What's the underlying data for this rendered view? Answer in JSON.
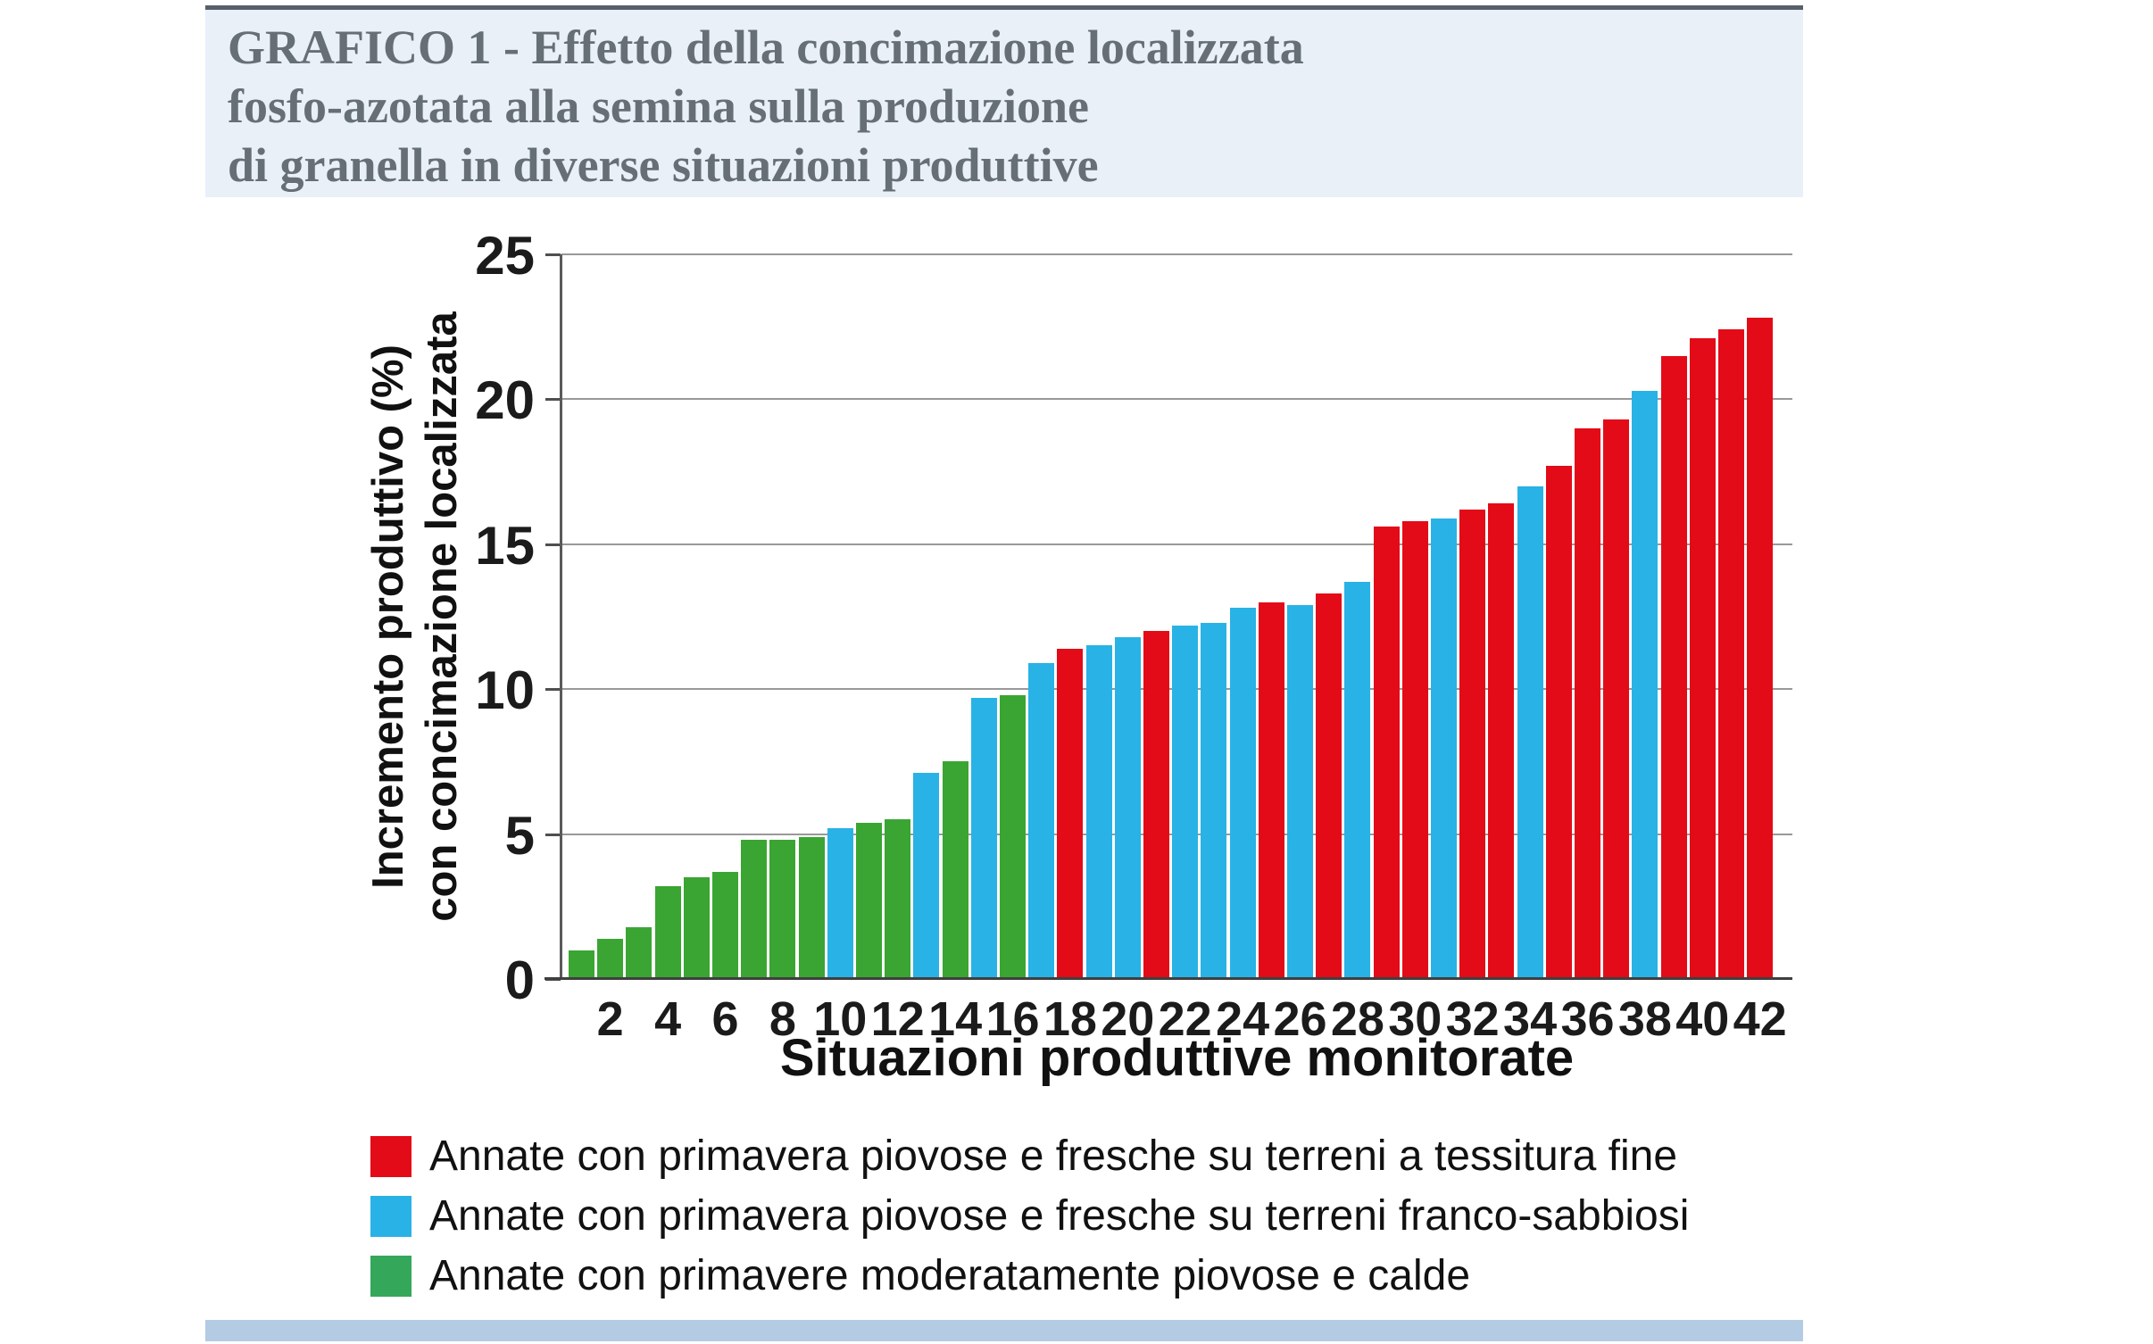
{
  "title": {
    "line1": "GRAFICO 1 - Effetto della concimazione localizzata",
    "line2": "fosfo-azotata alla semina sulla produzione",
    "line3": "di granella in diverse situazioni produttive"
  },
  "chart_data": {
    "type": "bar",
    "title": "GRAFICO 1 - Effetto della concimazione localizzata fosfo-azotata alla semina sulla produzione di granella in diverse situazioni produttive",
    "xlabel": "Situazioni produttive monitorate",
    "ylabel_line1": "Incremento produttivo (%)",
    "ylabel_line2": "con concimazione localizzata",
    "ylim": [
      0,
      25
    ],
    "yticks": [
      0,
      5,
      10,
      15,
      20,
      25
    ],
    "xtick_step": 2,
    "grid": true,
    "legend_position": "bottom",
    "colors": {
      "red": "#e30b17",
      "blue": "#29b2e5",
      "green": "#3aa532",
      "legend_green": "#35a75a"
    },
    "categories": [
      1,
      2,
      3,
      4,
      5,
      6,
      7,
      8,
      9,
      10,
      11,
      12,
      13,
      14,
      15,
      16,
      17,
      18,
      19,
      20,
      21,
      22,
      23,
      24,
      25,
      26,
      27,
      28,
      29,
      30,
      31,
      32,
      33,
      34,
      35,
      36,
      37,
      38,
      39,
      40,
      41,
      42
    ],
    "values": [
      1.0,
      1.4,
      1.8,
      3.2,
      3.5,
      3.7,
      4.8,
      4.8,
      4.9,
      5.2,
      5.4,
      5.5,
      7.1,
      7.5,
      9.7,
      9.8,
      10.9,
      11.4,
      11.5,
      11.8,
      12.0,
      12.2,
      12.3,
      12.8,
      13.0,
      12.9,
      13.3,
      13.7,
      15.6,
      15.8,
      15.9,
      16.2,
      16.4,
      17.0,
      17.7,
      19.0,
      19.3,
      20.3,
      21.5,
      22.1,
      22.4,
      22.8
    ],
    "groups": [
      "green",
      "green",
      "green",
      "green",
      "green",
      "green",
      "green",
      "green",
      "green",
      "blue",
      "green",
      "green",
      "blue",
      "green",
      "blue",
      "green",
      "blue",
      "red",
      "blue",
      "blue",
      "red",
      "blue",
      "blue",
      "blue",
      "red",
      "blue",
      "red",
      "blue",
      "red",
      "red",
      "blue",
      "red",
      "red",
      "blue",
      "red",
      "red",
      "red",
      "blue",
      "red",
      "red",
      "red",
      "red"
    ],
    "legend": [
      {
        "label": "Annate con primavera piovose e fresche su terreni a tessitura fine",
        "group": "red"
      },
      {
        "label": "Annate con primavera piovose e fresche su terreni franco-sabbiosi",
        "group": "blue"
      },
      {
        "label": "Annate con primavere moderatamente piovose e calde",
        "group": "legend_green"
      }
    ]
  }
}
